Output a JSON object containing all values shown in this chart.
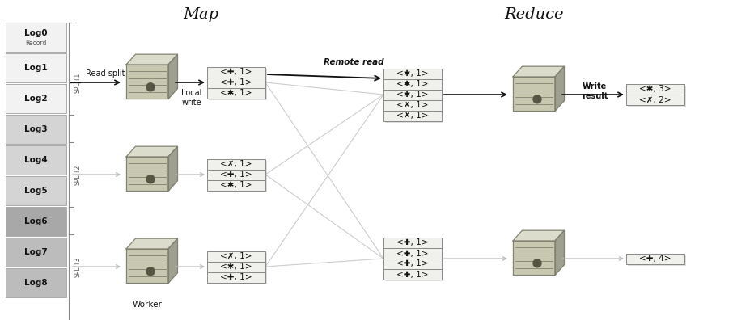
{
  "title_map": "Map",
  "title_reduce": "Reduce",
  "log_labels": [
    "Log0",
    "Log1",
    "Log2",
    "Log3",
    "Log4",
    "Log5",
    "Log6",
    "Log7",
    "Log8"
  ],
  "log_colors": [
    "#f2f2f2",
    "#f2f2f2",
    "#f2f2f2",
    "#d4d4d4",
    "#d4d4d4",
    "#d4d4d4",
    "#a8a8a8",
    "#bcbcbc",
    "#bcbcbc"
  ],
  "map_output_1": [
    "<✚, 1>",
    "<✚, 1>",
    "<✱, 1>"
  ],
  "map_output_2": [
    "<✗, 1>",
    "<✚, 1>",
    "<✱, 1>"
  ],
  "map_output_3": [
    "<✗, 1>",
    "<✱, 1>",
    "<✚, 1>"
  ],
  "reduce_input_1": [
    "<✱, 1>",
    "<✱, 1>",
    "<✱, 1>",
    "<✗, 1>",
    "<✗, 1>"
  ],
  "reduce_input_2": [
    "<✚, 1>",
    "<✚, 1>",
    "<✚, 1>",
    "<✚, 1>"
  ],
  "reduce_output_1": [
    "<✱, 3>",
    "<✗, 2>"
  ],
  "reduce_output_2": [
    "<✚, 4>"
  ],
  "bg_color": "#ffffff",
  "arrow_dark": "#111111",
  "arrow_light": "#bbbbbb",
  "text_color": "#111111",
  "label_read_split": "Read split",
  "label_local_write": "Local\nwrite",
  "label_remote_read": "Remote read",
  "label_write_result": "Write\nresult",
  "label_worker": "Worker",
  "server_face": "#c8c8b0",
  "server_top": "#dcdccc",
  "server_right": "#a0a090",
  "server_edge": "#808070",
  "box_face": "#f0f0ec",
  "box_shadow": "#aaaaaa",
  "box_edge": "#888888"
}
